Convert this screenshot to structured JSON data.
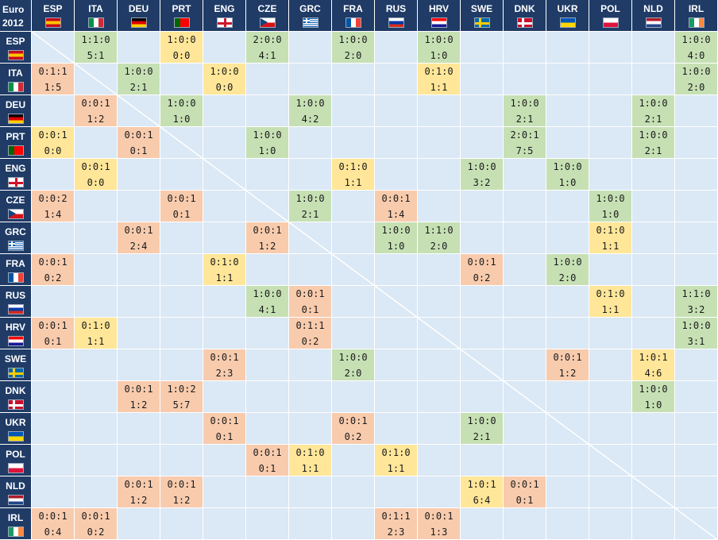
{
  "corner": {
    "line1": "Euro",
    "line2": "2012"
  },
  "colors": {
    "header_bg": "#1f3b66",
    "empty": "#dbe8f5",
    "win": "#c6e0b4",
    "draw": "#ffe699",
    "loss": "#f8cbad"
  },
  "chart_data": {
    "type": "table",
    "title": "Euro 2012",
    "teams": [
      "ESP",
      "ITA",
      "DEU",
      "PRT",
      "ENG",
      "CZE",
      "GRC",
      "FRA",
      "RUS",
      "HRV",
      "SWE",
      "DNK",
      "UKR",
      "POL",
      "NLD",
      "IRL"
    ],
    "flags": {
      "ESP": {
        "type": "h3",
        "c": [
          "#c60b1e",
          "#ffc400",
          "#c60b1e"
        ]
      },
      "ITA": {
        "type": "v3",
        "c": [
          "#009246",
          "#ffffff",
          "#ce2b37"
        ]
      },
      "DEU": {
        "type": "h3",
        "c": [
          "#000000",
          "#dd0000",
          "#ffce00"
        ]
      },
      "PRT": {
        "type": "v2",
        "c": [
          "#006600",
          "#ff0000"
        ]
      },
      "ENG": {
        "type": "cross",
        "c": [
          "#ffffff",
          "#cf142b"
        ]
      },
      "CZE": {
        "type": "cze",
        "c": [
          "#ffffff",
          "#d7141a",
          "#11457e"
        ]
      },
      "GRC": {
        "type": "grc",
        "c": [
          "#0d5eaf",
          "#ffffff"
        ]
      },
      "FRA": {
        "type": "v3",
        "c": [
          "#0055a4",
          "#ffffff",
          "#ef4135"
        ]
      },
      "RUS": {
        "type": "h3",
        "c": [
          "#ffffff",
          "#0039a6",
          "#d52b1e"
        ]
      },
      "HRV": {
        "type": "h3",
        "c": [
          "#ff0000",
          "#ffffff",
          "#171796"
        ]
      },
      "SWE": {
        "type": "nordic",
        "c": [
          "#006aa7",
          "#fecc00"
        ]
      },
      "DNK": {
        "type": "nordic",
        "c": [
          "#c8102e",
          "#ffffff"
        ]
      },
      "UKR": {
        "type": "h2",
        "c": [
          "#0057b7",
          "#ffd700"
        ]
      },
      "POL": {
        "type": "h2",
        "c": [
          "#ffffff",
          "#dc143c"
        ]
      },
      "NLD": {
        "type": "h3",
        "c": [
          "#ae1c28",
          "#ffffff",
          "#21468b"
        ]
      },
      "IRL": {
        "type": "v3",
        "c": [
          "#169b62",
          "#ffffff",
          "#ff883e"
        ]
      }
    },
    "cells": [
      {
        "row": "ESP",
        "col": "ITA",
        "t": "1:1:0",
        "b": "5:1",
        "k": "win"
      },
      {
        "row": "ESP",
        "col": "PRT",
        "t": "1:0:0",
        "b": "0:0",
        "k": "draw"
      },
      {
        "row": "ESP",
        "col": "CZE",
        "t": "2:0:0",
        "b": "4:1",
        "k": "win"
      },
      {
        "row": "ESP",
        "col": "FRA",
        "t": "1:0:0",
        "b": "2:0",
        "k": "win"
      },
      {
        "row": "ESP",
        "col": "HRV",
        "t": "1:0:0",
        "b": "1:0",
        "k": "win"
      },
      {
        "row": "ESP",
        "col": "IRL",
        "t": "1:0:0",
        "b": "4:0",
        "k": "win"
      },
      {
        "row": "ITA",
        "col": "ESP",
        "t": "0:1:1",
        "b": "1:5",
        "k": "loss"
      },
      {
        "row": "ITA",
        "col": "DEU",
        "t": "1:0:0",
        "b": "2:1",
        "k": "win"
      },
      {
        "row": "ITA",
        "col": "ENG",
        "t": "1:0:0",
        "b": "0:0",
        "k": "draw"
      },
      {
        "row": "ITA",
        "col": "HRV",
        "t": "0:1:0",
        "b": "1:1",
        "k": "draw"
      },
      {
        "row": "ITA",
        "col": "IRL",
        "t": "1:0:0",
        "b": "2:0",
        "k": "win"
      },
      {
        "row": "DEU",
        "col": "ITA",
        "t": "0:0:1",
        "b": "1:2",
        "k": "loss"
      },
      {
        "row": "DEU",
        "col": "PRT",
        "t": "1:0:0",
        "b": "1:0",
        "k": "win"
      },
      {
        "row": "DEU",
        "col": "GRC",
        "t": "1:0:0",
        "b": "4:2",
        "k": "win"
      },
      {
        "row": "DEU",
        "col": "DNK",
        "t": "1:0:0",
        "b": "2:1",
        "k": "win"
      },
      {
        "row": "DEU",
        "col": "NLD",
        "t": "1:0:0",
        "b": "2:1",
        "k": "win"
      },
      {
        "row": "PRT",
        "col": "ESP",
        "t": "0:0:1",
        "b": "0:0",
        "k": "draw"
      },
      {
        "row": "PRT",
        "col": "DEU",
        "t": "0:0:1",
        "b": "0:1",
        "k": "loss"
      },
      {
        "row": "PRT",
        "col": "CZE",
        "t": "1:0:0",
        "b": "1:0",
        "k": "win"
      },
      {
        "row": "PRT",
        "col": "DNK",
        "t": "2:0:1",
        "b": "7:5",
        "k": "win"
      },
      {
        "row": "PRT",
        "col": "NLD",
        "t": "1:0:0",
        "b": "2:1",
        "k": "win"
      },
      {
        "row": "ENG",
        "col": "ITA",
        "t": "0:0:1",
        "b": "0:0",
        "k": "draw"
      },
      {
        "row": "ENG",
        "col": "FRA",
        "t": "0:1:0",
        "b": "1:1",
        "k": "draw"
      },
      {
        "row": "ENG",
        "col": "SWE",
        "t": "1:0:0",
        "b": "3:2",
        "k": "win"
      },
      {
        "row": "ENG",
        "col": "UKR",
        "t": "1:0:0",
        "b": "1:0",
        "k": "win"
      },
      {
        "row": "CZE",
        "col": "ESP",
        "t": "0:0:2",
        "b": "1:4",
        "k": "loss"
      },
      {
        "row": "CZE",
        "col": "PRT",
        "t": "0:0:1",
        "b": "0:1",
        "k": "loss"
      },
      {
        "row": "CZE",
        "col": "GRC",
        "t": "1:0:0",
        "b": "2:1",
        "k": "win"
      },
      {
        "row": "CZE",
        "col": "RUS",
        "t": "0:0:1",
        "b": "1:4",
        "k": "loss"
      },
      {
        "row": "CZE",
        "col": "POL",
        "t": "1:0:0",
        "b": "1:0",
        "k": "win"
      },
      {
        "row": "GRC",
        "col": "DEU",
        "t": "0:0:1",
        "b": "2:4",
        "k": "loss"
      },
      {
        "row": "GRC",
        "col": "CZE",
        "t": "0:0:1",
        "b": "1:2",
        "k": "loss"
      },
      {
        "row": "GRC",
        "col": "RUS",
        "t": "1:0:0",
        "b": "1:0",
        "k": "win"
      },
      {
        "row": "GRC",
        "col": "HRV",
        "t": "1:1:0",
        "b": "2:0",
        "k": "win"
      },
      {
        "row": "GRC",
        "col": "POL",
        "t": "0:1:0",
        "b": "1:1",
        "k": "draw"
      },
      {
        "row": "FRA",
        "col": "ESP",
        "t": "0:0:1",
        "b": "0:2",
        "k": "loss"
      },
      {
        "row": "FRA",
        "col": "ENG",
        "t": "0:1:0",
        "b": "1:1",
        "k": "draw"
      },
      {
        "row": "FRA",
        "col": "SWE",
        "t": "0:0:1",
        "b": "0:2",
        "k": "loss"
      },
      {
        "row": "FRA",
        "col": "UKR",
        "t": "1:0:0",
        "b": "2:0",
        "k": "win"
      },
      {
        "row": "RUS",
        "col": "CZE",
        "t": "1:0:0",
        "b": "4:1",
        "k": "win"
      },
      {
        "row": "RUS",
        "col": "GRC",
        "t": "0:0:1",
        "b": "0:1",
        "k": "loss"
      },
      {
        "row": "RUS",
        "col": "POL",
        "t": "0:1:0",
        "b": "1:1",
        "k": "draw"
      },
      {
        "row": "RUS",
        "col": "IRL",
        "t": "1:1:0",
        "b": "3:2",
        "k": "win"
      },
      {
        "row": "HRV",
        "col": "ESP",
        "t": "0:0:1",
        "b": "0:1",
        "k": "loss"
      },
      {
        "row": "HRV",
        "col": "ITA",
        "t": "0:1:0",
        "b": "1:1",
        "k": "draw"
      },
      {
        "row": "HRV",
        "col": "GRC",
        "t": "0:1:1",
        "b": "0:2",
        "k": "loss"
      },
      {
        "row": "HRV",
        "col": "IRL",
        "t": "1:0:0",
        "b": "3:1",
        "k": "win"
      },
      {
        "row": "SWE",
        "col": "ENG",
        "t": "0:0:1",
        "b": "2:3",
        "k": "loss"
      },
      {
        "row": "SWE",
        "col": "FRA",
        "t": "1:0:0",
        "b": "2:0",
        "k": "win"
      },
      {
        "row": "SWE",
        "col": "UKR",
        "t": "0:0:1",
        "b": "1:2",
        "k": "loss"
      },
      {
        "row": "SWE",
        "col": "NLD",
        "t": "1:0:1",
        "b": "4:6",
        "k": "draw"
      },
      {
        "row": "DNK",
        "col": "DEU",
        "t": "0:0:1",
        "b": "1:2",
        "k": "loss"
      },
      {
        "row": "DNK",
        "col": "PRT",
        "t": "1:0:2",
        "b": "5:7",
        "k": "loss"
      },
      {
        "row": "DNK",
        "col": "NLD",
        "t": "1:0:0",
        "b": "1:0",
        "k": "win"
      },
      {
        "row": "UKR",
        "col": "ENG",
        "t": "0:0:1",
        "b": "0:1",
        "k": "loss"
      },
      {
        "row": "UKR",
        "col": "FRA",
        "t": "0:0:1",
        "b": "0:2",
        "k": "loss"
      },
      {
        "row": "UKR",
        "col": "SWE",
        "t": "1:0:0",
        "b": "2:1",
        "k": "win"
      },
      {
        "row": "POL",
        "col": "CZE",
        "t": "0:0:1",
        "b": "0:1",
        "k": "loss"
      },
      {
        "row": "POL",
        "col": "GRC",
        "t": "0:1:0",
        "b": "1:1",
        "k": "draw"
      },
      {
        "row": "POL",
        "col": "RUS",
        "t": "0:1:0",
        "b": "1:1",
        "k": "draw"
      },
      {
        "row": "NLD",
        "col": "DEU",
        "t": "0:0:1",
        "b": "1:2",
        "k": "loss"
      },
      {
        "row": "NLD",
        "col": "PRT",
        "t": "0:0:1",
        "b": "1:2",
        "k": "loss"
      },
      {
        "row": "NLD",
        "col": "SWE",
        "t": "1:0:1",
        "b": "6:4",
        "k": "draw"
      },
      {
        "row": "NLD",
        "col": "DNK",
        "t": "0:0:1",
        "b": "0:1",
        "k": "loss"
      },
      {
        "row": "IRL",
        "col": "ESP",
        "t": "0:0:1",
        "b": "0:4",
        "k": "loss"
      },
      {
        "row": "IRL",
        "col": "ITA",
        "t": "0:0:1",
        "b": "0:2",
        "k": "loss"
      },
      {
        "row": "IRL",
        "col": "RUS",
        "t": "0:1:1",
        "b": "2:3",
        "k": "loss"
      },
      {
        "row": "IRL",
        "col": "HRV",
        "t": "0:0:1",
        "b": "1:3",
        "k": "loss"
      }
    ]
  }
}
